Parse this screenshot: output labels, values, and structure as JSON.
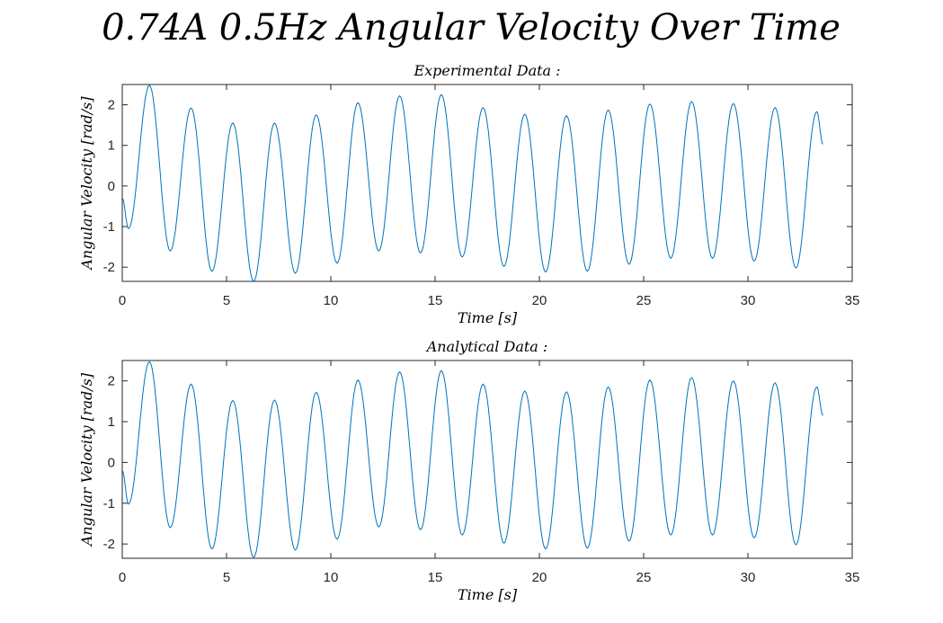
{
  "figure": {
    "title": "0.74A 0.5Hz Angular Velocity Over Time",
    "line_color": "#0072BD"
  },
  "chart_data": [
    {
      "type": "line",
      "title": "Experimental Data :",
      "xlabel": "Time [s]",
      "ylabel": "Angular Velocity [rad/s]",
      "xlim": [
        0,
        35
      ],
      "ylim": [
        -2.35,
        2.5
      ],
      "xticks": [
        "0",
        "5",
        "10",
        "15",
        "20",
        "25",
        "30",
        "35"
      ],
      "yticks": [
        "-2",
        "-1",
        "0",
        "1",
        "2"
      ],
      "grid": false,
      "series": [
        {
          "x": [
            0.0,
            0.3,
            1.3,
            2.3,
            3.3,
            4.3,
            5.3,
            6.3,
            7.3,
            8.3,
            9.3,
            10.3,
            11.3,
            12.3,
            13.3,
            14.3,
            15.3,
            16.3,
            17.3,
            18.3,
            19.3,
            20.3,
            21.3,
            22.3,
            23.3,
            24.3,
            25.3,
            26.3,
            27.3,
            28.3,
            29.3,
            30.3,
            31.3,
            32.3,
            33.3,
            33.6
          ],
          "y": [
            -0.3,
            -1.05,
            2.48,
            -1.6,
            1.92,
            -2.1,
            1.55,
            -2.35,
            1.55,
            -2.15,
            1.75,
            -1.9,
            2.05,
            -1.6,
            2.22,
            -1.65,
            2.25,
            -1.75,
            1.93,
            -1.98,
            1.77,
            -2.12,
            1.73,
            -2.1,
            1.87,
            -1.93,
            2.02,
            -1.78,
            2.08,
            -1.78,
            2.03,
            -1.85,
            1.93,
            -2.02,
            1.83,
            1.03
          ]
        }
      ]
    },
    {
      "type": "line",
      "title": "Analytical Data :",
      "xlabel": "Time [s]",
      "ylabel": "Angular Velocity [rad/s]",
      "xlim": [
        0,
        35
      ],
      "ylim": [
        -2.35,
        2.5
      ],
      "xticks": [
        "0",
        "5",
        "10",
        "15",
        "20",
        "25",
        "30",
        "35"
      ],
      "yticks": [
        "-2",
        "-1",
        "0",
        "1",
        "2"
      ],
      "grid": false,
      "series": [
        {
          "x": [
            0.0,
            0.3,
            1.3,
            2.3,
            3.3,
            4.3,
            5.3,
            6.3,
            7.3,
            8.3,
            9.3,
            10.3,
            11.3,
            12.3,
            13.3,
            14.3,
            15.3,
            16.3,
            17.3,
            18.3,
            19.3,
            20.3,
            21.3,
            22.3,
            23.3,
            24.3,
            25.3,
            26.3,
            27.3,
            28.3,
            29.3,
            30.3,
            31.3,
            32.3,
            33.3,
            33.6
          ],
          "y": [
            -0.2,
            -1.02,
            2.47,
            -1.6,
            1.92,
            -2.12,
            1.52,
            -2.33,
            1.53,
            -2.15,
            1.72,
            -1.88,
            2.02,
            -1.58,
            2.22,
            -1.65,
            2.25,
            -1.78,
            1.92,
            -1.98,
            1.75,
            -2.12,
            1.73,
            -2.1,
            1.85,
            -1.93,
            2.02,
            -1.78,
            2.08,
            -1.78,
            2.0,
            -1.85,
            1.95,
            -2.02,
            1.85,
            1.15
          ]
        }
      ]
    }
  ]
}
